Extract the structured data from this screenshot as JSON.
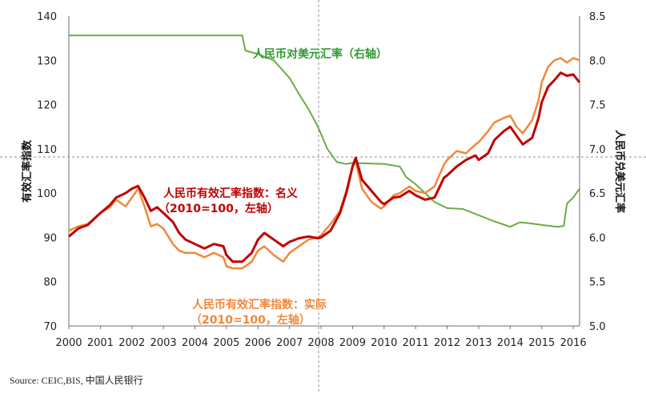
{
  "colors": {
    "nominal": "#C00000",
    "real": "#F0883A",
    "usdcny": "#6AAC46",
    "guide": "#8C8C8C"
  },
  "source": "Source: CEIC,BIS, 中国人民银行",
  "chart_data": {
    "type": "line",
    "x": [
      "2000",
      "2001",
      "2002",
      "2003",
      "2004",
      "2005",
      "2006",
      "2007",
      "2008",
      "2009",
      "2010",
      "2011",
      "2012",
      "2013",
      "2014",
      "2015",
      "2016"
    ],
    "xlim": [
      2000.0,
      2016.2
    ],
    "y_left": {
      "label": "有效汇率指数",
      "range": [
        70,
        140
      ],
      "ticks": [
        "70",
        "80",
        "90",
        "100",
        "110",
        "120",
        "130",
        "140"
      ]
    },
    "y_right": {
      "label": "人民币兑美元汇率",
      "range": [
        5.0,
        8.5
      ],
      "ticks": [
        "5.0",
        "5.5",
        "6.0",
        "6.5",
        "7.0",
        "7.5",
        "8.0",
        "8.5"
      ]
    },
    "annotations": {
      "usdcny": "人民币对美元汇率（右轴）",
      "nominal_1": "人民币有效汇率指数：名义",
      "nominal_2": "（2010=100，左轴）",
      "real_1": "人民币有效汇率指数：实际",
      "real_2": "（2010=100，左轴）"
    },
    "series": [
      {
        "key": "nominal",
        "axis": "left",
        "points": [
          [
            2000.0,
            90.2
          ],
          [
            2000.3,
            92.0
          ],
          [
            2000.6,
            92.8
          ],
          [
            2001.0,
            95.5
          ],
          [
            2001.3,
            97.3
          ],
          [
            2001.5,
            99.0
          ],
          [
            2001.8,
            100.0
          ],
          [
            2002.0,
            101.0
          ],
          [
            2002.2,
            101.6
          ],
          [
            2002.4,
            99.0
          ],
          [
            2002.6,
            96.0
          ],
          [
            2002.8,
            96.8
          ],
          [
            2003.0,
            95.5
          ],
          [
            2003.3,
            93.5
          ],
          [
            2003.5,
            91.0
          ],
          [
            2003.7,
            89.5
          ],
          [
            2004.0,
            88.5
          ],
          [
            2004.3,
            87.5
          ],
          [
            2004.6,
            88.5
          ],
          [
            2004.9,
            88.0
          ],
          [
            2005.0,
            86.0
          ],
          [
            2005.2,
            84.5
          ],
          [
            2005.5,
            84.5
          ],
          [
            2005.8,
            86.5
          ],
          [
            2006.0,
            89.5
          ],
          [
            2006.2,
            91.0
          ],
          [
            2006.5,
            89.5
          ],
          [
            2006.8,
            88.0
          ],
          [
            2007.0,
            89.0
          ],
          [
            2007.3,
            89.8
          ],
          [
            2007.6,
            90.2
          ],
          [
            2007.9,
            89.8
          ],
          [
            2008.0,
            90.0
          ],
          [
            2008.3,
            91.5
          ],
          [
            2008.6,
            95.5
          ],
          [
            2008.8,
            100.0
          ],
          [
            2009.0,
            106.0
          ],
          [
            2009.1,
            108.0
          ],
          [
            2009.3,
            103.0
          ],
          [
            2009.6,
            100.5
          ],
          [
            2009.9,
            98.0
          ],
          [
            2010.0,
            97.5
          ],
          [
            2010.3,
            99.0
          ],
          [
            2010.5,
            99.2
          ],
          [
            2010.8,
            100.5
          ],
          [
            2011.0,
            99.5
          ],
          [
            2011.3,
            98.5
          ],
          [
            2011.6,
            99.0
          ],
          [
            2011.9,
            103.5
          ],
          [
            2012.0,
            104.0
          ],
          [
            2012.3,
            106.0
          ],
          [
            2012.6,
            107.5
          ],
          [
            2012.9,
            108.5
          ],
          [
            2013.0,
            107.5
          ],
          [
            2013.3,
            109.0
          ],
          [
            2013.5,
            112.0
          ],
          [
            2013.8,
            114.0
          ],
          [
            2014.0,
            115.0
          ],
          [
            2014.2,
            113.0
          ],
          [
            2014.4,
            111.0
          ],
          [
            2014.7,
            112.5
          ],
          [
            2014.9,
            117.0
          ],
          [
            2015.0,
            120.5
          ],
          [
            2015.2,
            124.0
          ],
          [
            2015.4,
            125.5
          ],
          [
            2015.6,
            127.2
          ],
          [
            2015.8,
            126.5
          ],
          [
            2016.0,
            126.8
          ],
          [
            2016.2,
            125.0
          ]
        ]
      },
      {
        "key": "real",
        "axis": "left",
        "points": [
          [
            2000.0,
            91.5
          ],
          [
            2000.3,
            92.5
          ],
          [
            2000.6,
            93.0
          ],
          [
            2001.0,
            95.5
          ],
          [
            2001.3,
            96.8
          ],
          [
            2001.5,
            98.5
          ],
          [
            2001.8,
            97.0
          ],
          [
            2002.0,
            99.0
          ],
          [
            2002.2,
            101.0
          ],
          [
            2002.4,
            97.0
          ],
          [
            2002.6,
            92.5
          ],
          [
            2002.8,
            93.0
          ],
          [
            2003.0,
            92.0
          ],
          [
            2003.3,
            88.5
          ],
          [
            2003.5,
            87.0
          ],
          [
            2003.7,
            86.5
          ],
          [
            2004.0,
            86.5
          ],
          [
            2004.3,
            85.5
          ],
          [
            2004.6,
            86.5
          ],
          [
            2004.9,
            85.5
          ],
          [
            2005.0,
            83.5
          ],
          [
            2005.2,
            83.0
          ],
          [
            2005.5,
            83.0
          ],
          [
            2005.8,
            84.5
          ],
          [
            2006.0,
            87.0
          ],
          [
            2006.2,
            88.0
          ],
          [
            2006.5,
            86.0
          ],
          [
            2006.8,
            84.5
          ],
          [
            2007.0,
            86.5
          ],
          [
            2007.3,
            88.0
          ],
          [
            2007.6,
            89.5
          ],
          [
            2007.9,
            90.0
          ],
          [
            2008.0,
            90.5
          ],
          [
            2008.3,
            93.0
          ],
          [
            2008.6,
            96.0
          ],
          [
            2008.8,
            100.5
          ],
          [
            2009.0,
            106.0
          ],
          [
            2009.1,
            107.0
          ],
          [
            2009.3,
            101.0
          ],
          [
            2009.6,
            98.0
          ],
          [
            2009.9,
            96.5
          ],
          [
            2010.0,
            97.0
          ],
          [
            2010.3,
            99.5
          ],
          [
            2010.5,
            100.0
          ],
          [
            2010.8,
            101.5
          ],
          [
            2011.0,
            100.5
          ],
          [
            2011.3,
            100.0
          ],
          [
            2011.6,
            101.5
          ],
          [
            2011.9,
            106.5
          ],
          [
            2012.0,
            107.5
          ],
          [
            2012.3,
            109.5
          ],
          [
            2012.6,
            109.0
          ],
          [
            2012.9,
            111.0
          ],
          [
            2013.0,
            111.5
          ],
          [
            2013.3,
            114.0
          ],
          [
            2013.5,
            116.0
          ],
          [
            2013.8,
            117.0
          ],
          [
            2014.0,
            117.5
          ],
          [
            2014.2,
            115.0
          ],
          [
            2014.4,
            113.5
          ],
          [
            2014.7,
            116.5
          ],
          [
            2014.9,
            121.0
          ],
          [
            2015.0,
            125.0
          ],
          [
            2015.2,
            128.5
          ],
          [
            2015.4,
            130.0
          ],
          [
            2015.6,
            130.5
          ],
          [
            2015.8,
            129.5
          ],
          [
            2016.0,
            130.5
          ],
          [
            2016.2,
            130.0
          ]
        ]
      },
      {
        "key": "usdcny",
        "axis": "right",
        "points": [
          [
            2000.0,
            8.28
          ],
          [
            2005.5,
            8.28
          ],
          [
            2005.6,
            8.11
          ],
          [
            2006.0,
            8.07
          ],
          [
            2006.5,
            8.0
          ],
          [
            2007.0,
            7.8
          ],
          [
            2007.3,
            7.62
          ],
          [
            2007.6,
            7.45
          ],
          [
            2007.9,
            7.25
          ],
          [
            2008.2,
            7.0
          ],
          [
            2008.5,
            6.85
          ],
          [
            2008.8,
            6.83
          ],
          [
            2009.0,
            6.84
          ],
          [
            2010.0,
            6.83
          ],
          [
            2010.5,
            6.8
          ],
          [
            2010.7,
            6.68
          ],
          [
            2011.0,
            6.6
          ],
          [
            2011.3,
            6.5
          ],
          [
            2011.6,
            6.4
          ],
          [
            2012.0,
            6.33
          ],
          [
            2012.5,
            6.32
          ],
          [
            2013.0,
            6.25
          ],
          [
            2013.5,
            6.18
          ],
          [
            2014.0,
            6.12
          ],
          [
            2014.3,
            6.17
          ],
          [
            2014.6,
            6.16
          ],
          [
            2015.0,
            6.14
          ],
          [
            2015.5,
            6.12
          ],
          [
            2015.7,
            6.13
          ],
          [
            2015.8,
            6.38
          ],
          [
            2016.0,
            6.45
          ],
          [
            2016.2,
            6.55
          ]
        ]
      }
    ]
  }
}
